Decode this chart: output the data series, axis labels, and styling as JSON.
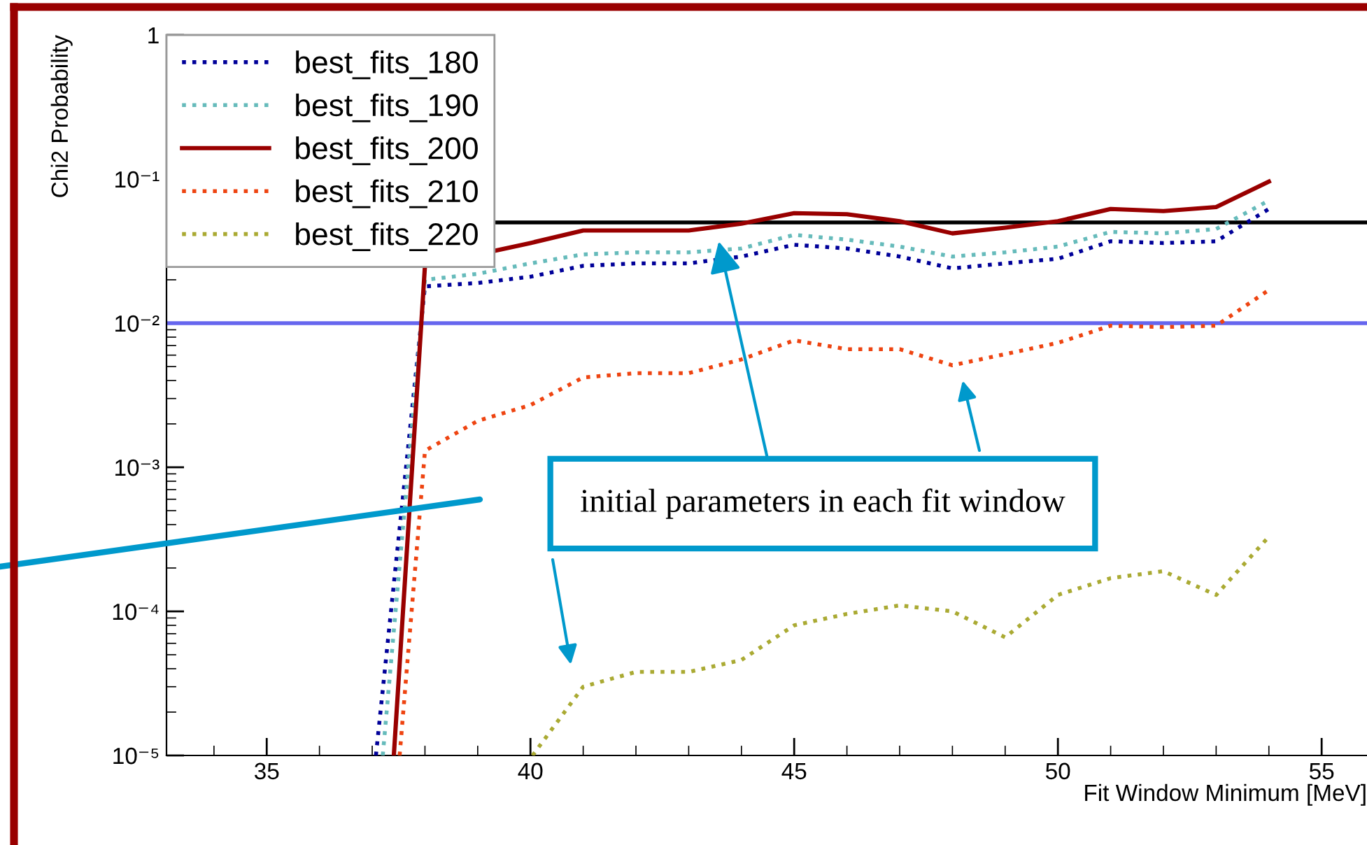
{
  "chart_data": {
    "type": "line",
    "xlabel": "Fit Window Minimum [MeV]",
    "ylabel": "Chi2 Probability",
    "log": "y",
    "xlim": [
      33.1,
      55.86
    ],
    "xticks": [
      35,
      40,
      45,
      50,
      55
    ],
    "ylim": [
      1e-05,
      1
    ],
    "yticks": [
      {
        "value": 1e-05,
        "label": "10⁻⁵"
      },
      {
        "value": 0.0001,
        "label": "10⁻⁴"
      },
      {
        "value": 0.001,
        "label": "10⁻³"
      },
      {
        "value": 0.01,
        "label": "10⁻²"
      },
      {
        "value": 0.1,
        "label": "10⁻¹"
      },
      {
        "value": 1,
        "label": "1"
      }
    ],
    "grid": false,
    "legend": "top left",
    "marker": "none",
    "series": [
      {
        "name": "best_fits_180",
        "color": "#000099",
        "line_style": "dotted",
        "x": [
          37.07,
          38,
          39,
          40,
          41,
          42,
          43,
          44,
          45,
          46,
          47,
          48,
          49,
          50,
          51,
          52,
          53,
          54
        ],
        "values": [
          1e-05,
          0.018,
          0.019,
          0.021,
          0.025,
          0.026,
          0.026,
          0.029,
          0.035,
          0.033,
          0.029,
          0.024,
          0.026,
          0.028,
          0.037,
          0.036,
          0.037,
          0.062
        ]
      },
      {
        "name": "best_fits_190",
        "color": "#66bbbb",
        "line_style": "dotted",
        "x": [
          37.2,
          38,
          39,
          40,
          41,
          42,
          43,
          44,
          45,
          46,
          47,
          48,
          49,
          50,
          51,
          52,
          53,
          54
        ],
        "values": [
          1e-05,
          0.02,
          0.022,
          0.026,
          0.03,
          0.031,
          0.031,
          0.033,
          0.041,
          0.038,
          0.034,
          0.029,
          0.031,
          0.034,
          0.043,
          0.042,
          0.045,
          0.071
        ]
      },
      {
        "name": "best_fits_200",
        "color": "#990000",
        "line_style": "solid",
        "x": [
          37.41,
          38,
          40,
          41,
          42,
          43,
          44,
          45,
          46,
          47,
          48,
          49,
          50,
          51,
          52,
          53,
          54
        ],
        "values": [
          1e-05,
          0.025,
          0.036,
          0.044,
          0.044,
          0.044,
          0.049,
          0.058,
          0.057,
          0.051,
          0.042,
          0.046,
          0.051,
          0.062,
          0.06,
          0.064,
          0.096
        ]
      },
      {
        "name": "best_fits_210",
        "color": "#ee4411",
        "line_style": "dotted",
        "x": [
          37.52,
          38,
          39,
          40,
          41,
          42,
          43,
          44,
          45,
          46,
          47,
          48,
          49,
          50,
          51,
          52,
          53,
          54
        ],
        "values": [
          1e-05,
          0.0013,
          0.0021,
          0.0027,
          0.0042,
          0.0045,
          0.0045,
          0.0056,
          0.0076,
          0.0066,
          0.0066,
          0.0051,
          0.0061,
          0.0073,
          0.0096,
          0.0094,
          0.0096,
          0.017
        ]
      },
      {
        "name": "best_fits_220",
        "color": "#aaaa33",
        "line_style": "dotted",
        "x": [
          40.04,
          41,
          42,
          43,
          44,
          45,
          46,
          47,
          48,
          49,
          50,
          51,
          52,
          53,
          54
        ],
        "values": [
          1e-05,
          3e-05,
          3.8e-05,
          3.8e-05,
          4.6e-05,
          8e-05,
          9.6e-05,
          0.00011,
          0.0001,
          6.6e-05,
          0.00013,
          0.00017,
          0.00019,
          0.00013,
          0.00033
        ]
      }
    ],
    "ref_lines": [
      {
        "axis": "y",
        "value": 0.05,
        "color": "#000000"
      },
      {
        "axis": "y",
        "value": 0.01,
        "color": "#6666ee"
      }
    ],
    "annotations": [
      {
        "text": "initial parameters in each fit window",
        "x": 43.57,
        "y": 0.037
      }
    ]
  }
}
